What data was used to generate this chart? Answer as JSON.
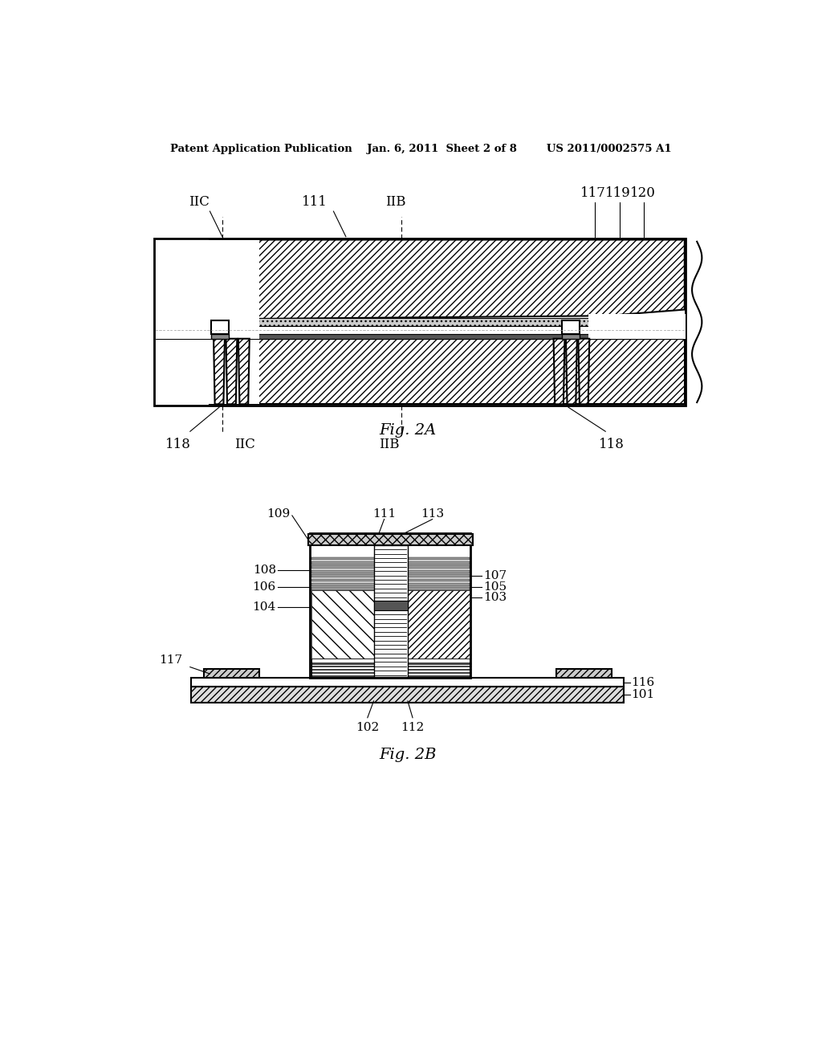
{
  "bg_color": "#ffffff",
  "header_text": "Patent Application Publication    Jan. 6, 2011  Sheet 2 of 8        US 2011/0002575 A1",
  "fig2A_label": "Fig. 2A",
  "fig2B_label": "Fig. 2B"
}
